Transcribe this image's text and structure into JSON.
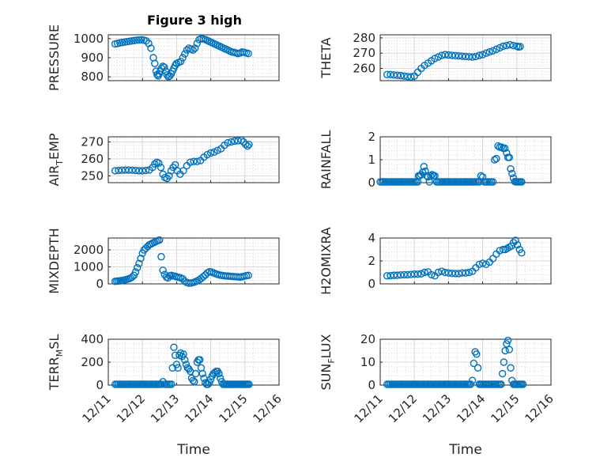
{
  "figure": {
    "title": "Figure 3 high"
  },
  "chart_data": [
    {
      "id": "pressure",
      "type": "scatter",
      "ylabel": "PRESSURE",
      "xlabel": "",
      "title": "Figure 3 high",
      "xlim": [
        0,
        5
      ],
      "ylim": [
        780,
        1020
      ],
      "xticks": [
        0,
        1,
        2,
        3,
        4,
        5
      ],
      "xticklabels": [],
      "yticks": [
        800,
        900,
        1000
      ],
      "yticklabels": [
        "800",
        "900",
        "1000"
      ],
      "grid": true,
      "minor_grid": true,
      "marker": "o",
      "color": "#0072bd",
      "x": [
        0.2,
        0.27,
        0.34,
        0.41,
        0.48,
        0.55,
        0.62,
        0.69,
        0.76,
        0.83,
        0.9,
        0.97,
        1.04,
        1.11,
        1.18,
        1.25,
        1.32,
        1.36,
        1.4,
        1.43,
        1.46,
        1.49,
        1.52,
        1.56,
        1.6,
        1.64,
        1.68,
        1.72,
        1.76,
        1.8,
        1.84,
        1.88,
        1.92,
        1.96,
        2.0,
        2.06,
        2.12,
        2.18,
        2.24,
        2.3,
        2.36,
        2.42,
        2.48,
        2.54,
        2.6,
        2.66,
        2.72,
        2.78,
        2.84,
        2.9,
        2.96,
        3.02,
        3.08,
        3.14,
        3.2,
        3.26,
        3.32,
        3.38,
        3.44,
        3.5,
        3.56,
        3.62,
        3.68,
        3.74,
        3.8,
        3.86,
        3.92,
        3.98,
        4.04,
        4.1
      ],
      "y": [
        972,
        975,
        978,
        980,
        982,
        984,
        986,
        988,
        990,
        992,
        993,
        994,
        992,
        988,
        975,
        950,
        900,
        870,
        830,
        812,
        805,
        815,
        830,
        845,
        855,
        850,
        830,
        810,
        800,
        805,
        815,
        830,
        845,
        860,
        870,
        875,
        880,
        900,
        920,
        940,
        950,
        945,
        940,
        950,
        975,
        995,
        1000,
        998,
        995,
        990,
        985,
        980,
        975,
        970,
        965,
        960,
        955,
        950,
        945,
        940,
        935,
        930,
        928,
        925,
        922,
        925,
        930,
        928,
        925,
        922
      ]
    },
    {
      "id": "theta",
      "type": "scatter",
      "ylabel": "THETA",
      "xlabel": "",
      "xlim": [
        0,
        5
      ],
      "ylim": [
        252,
        282
      ],
      "xticks": [
        0,
        1,
        2,
        3,
        4,
        5
      ],
      "xticklabels": [],
      "yticks": [
        260,
        270,
        280
      ],
      "yticklabels": [
        "260",
        "270",
        "280"
      ],
      "grid": true,
      "minor_grid": true,
      "marker": "o",
      "color": "#0072bd",
      "x": [
        0.2,
        0.3,
        0.4,
        0.5,
        0.6,
        0.7,
        0.8,
        0.9,
        1.0,
        1.1,
        1.2,
        1.3,
        1.4,
        1.5,
        1.6,
        1.7,
        1.8,
        1.9,
        2.0,
        2.1,
        2.2,
        2.3,
        2.4,
        2.5,
        2.6,
        2.7,
        2.8,
        2.9,
        3.0,
        3.1,
        3.2,
        3.3,
        3.4,
        3.5,
        3.6,
        3.7,
        3.8,
        3.9,
        4.0,
        4.05,
        4.1
      ],
      "y": [
        256,
        256,
        255.7,
        255.5,
        255.3,
        255,
        254.7,
        254.5,
        255,
        257.5,
        260,
        262,
        263.5,
        265,
        266.5,
        267.5,
        268.5,
        269,
        268.8,
        268.6,
        268.4,
        268.2,
        268,
        267.8,
        267.6,
        267.4,
        267.8,
        268.5,
        269,
        270,
        270.8,
        271.5,
        272.5,
        273.5,
        274.5,
        275,
        275.5,
        275,
        274.5,
        274,
        274.3
      ]
    },
    {
      "id": "air_temp",
      "type": "scatter",
      "ylabel": "AIR_TEMP",
      "xlabel": "",
      "xlim": [
        0,
        5
      ],
      "ylim": [
        246,
        273
      ],
      "xticks": [
        0,
        1,
        2,
        3,
        4,
        5
      ],
      "xticklabels": [],
      "yticks": [
        250,
        260,
        270
      ],
      "yticklabels": [
        "250",
        "260",
        "270"
      ],
      "grid": true,
      "minor_grid": true,
      "marker": "o",
      "color": "#0072bd",
      "x": [
        0.2,
        0.3,
        0.4,
        0.5,
        0.6,
        0.7,
        0.8,
        0.9,
        1.0,
        1.1,
        1.2,
        1.3,
        1.36,
        1.42,
        1.48,
        1.54,
        1.6,
        1.66,
        1.72,
        1.78,
        1.84,
        1.9,
        1.96,
        2.02,
        2.1,
        2.2,
        2.3,
        2.4,
        2.5,
        2.6,
        2.7,
        2.8,
        2.9,
        3.0,
        3.1,
        3.2,
        3.3,
        3.4,
        3.5,
        3.6,
        3.7,
        3.8,
        3.9,
        3.96,
        4.02,
        4.08,
        4.12
      ],
      "y": [
        253,
        253.2,
        253.3,
        253.4,
        253.4,
        253.3,
        253.2,
        253,
        253,
        253.2,
        253.5,
        255,
        257,
        258,
        257.5,
        255,
        251,
        249,
        248.5,
        250,
        253,
        255,
        256.5,
        253,
        251,
        253,
        256,
        258,
        258.5,
        258.5,
        259,
        261,
        262.5,
        263.5,
        264,
        265,
        266,
        268,
        269.5,
        270,
        270.5,
        270.7,
        271,
        270,
        268.5,
        267.5,
        268.5
      ]
    },
    {
      "id": "rainfall",
      "type": "scatter",
      "ylabel": "RAINFALL",
      "xlabel": "",
      "xlim": [
        0,
        5
      ],
      "ylim": [
        0,
        2
      ],
      "xticks": [
        0,
        1,
        2,
        3,
        4,
        5
      ],
      "xticklabels": [],
      "yticks": [
        0,
        1,
        2
      ],
      "yticklabels": [
        "0",
        "1",
        "2"
      ],
      "grid": true,
      "minor_grid": true,
      "marker": "o",
      "color": "#0072bd",
      "x": [
        0.0,
        0.05,
        0.1,
        0.15,
        0.2,
        0.25,
        0.3,
        0.35,
        0.4,
        0.45,
        0.5,
        0.55,
        0.6,
        0.65,
        0.7,
        0.75,
        0.8,
        0.85,
        0.9,
        0.95,
        1.0,
        1.05,
        1.1,
        1.12,
        1.16,
        1.2,
        1.24,
        1.28,
        1.32,
        1.36,
        1.4,
        1.44,
        1.48,
        1.52,
        1.56,
        1.6,
        1.65,
        1.7,
        1.75,
        1.8,
        1.85,
        1.9,
        1.95,
        2.0,
        2.05,
        2.1,
        2.15,
        2.2,
        2.25,
        2.3,
        2.35,
        2.4,
        2.45,
        2.5,
        2.55,
        2.6,
        2.65,
        2.7,
        2.75,
        2.8,
        2.85,
        2.9,
        2.95,
        3.0,
        3.05,
        3.1,
        3.15,
        3.2,
        3.25,
        3.3,
        3.35,
        3.4,
        3.45,
        3.5,
        3.55,
        3.6,
        3.65,
        3.7,
        3.74,
        3.78,
        3.82,
        3.86,
        3.9,
        3.94,
        3.98,
        4.02,
        4.06,
        4.1,
        4.14
      ],
      "y": [
        0,
        0,
        0,
        0,
        0,
        0,
        0,
        0,
        0,
        0,
        0,
        0,
        0,
        0,
        0,
        0,
        0,
        0,
        0,
        0,
        0,
        0,
        0,
        0.3,
        0.3,
        0.35,
        0.45,
        0.7,
        0.5,
        0.3,
        0.25,
        0,
        0.3,
        0.35,
        0.3,
        0.3,
        0,
        0,
        0,
        0,
        0,
        0,
        0,
        0,
        0,
        0,
        0,
        0,
        0,
        0,
        0,
        0,
        0,
        0,
        0,
        0,
        0,
        0,
        0,
        0,
        0,
        0,
        0.3,
        0.25,
        0,
        0,
        0,
        0,
        0,
        0,
        1.0,
        1.05,
        1.6,
        1.55,
        1.55,
        1.5,
        1.5,
        1.3,
        1.1,
        1.1,
        0.6,
        0.4,
        0.2,
        0.05,
        0,
        0,
        0,
        0,
        0
      ]
    },
    {
      "id": "mixdepth",
      "type": "scatter",
      "ylabel": "MIXDEPTH",
      "xlabel": "",
      "xlim": [
        0,
        5
      ],
      "ylim": [
        0,
        2700
      ],
      "xticks": [
        0,
        1,
        2,
        3,
        4,
        5
      ],
      "xticklabels": [],
      "yticks": [
        0,
        1000,
        2000
      ],
      "yticklabels": [
        "0",
        "1000",
        "2000"
      ],
      "grid": true,
      "minor_grid": true,
      "marker": "o",
      "color": "#0072bd",
      "x": [
        0.2,
        0.25,
        0.3,
        0.35,
        0.4,
        0.45,
        0.5,
        0.55,
        0.6,
        0.65,
        0.7,
        0.75,
        0.8,
        0.85,
        0.9,
        0.95,
        1.0,
        1.05,
        1.1,
        1.15,
        1.2,
        1.25,
        1.3,
        1.35,
        1.4,
        1.45,
        1.5,
        1.55,
        1.6,
        1.65,
        1.7,
        1.75,
        1.8,
        1.85,
        1.9,
        1.95,
        2.0,
        2.06,
        2.12,
        2.18,
        2.24,
        2.3,
        2.36,
        2.42,
        2.48,
        2.54,
        2.6,
        2.66,
        2.72,
        2.78,
        2.84,
        2.9,
        2.96,
        3.02,
        3.08,
        3.14,
        3.2,
        3.26,
        3.32,
        3.38,
        3.44,
        3.5,
        3.56,
        3.62,
        3.68,
        3.74,
        3.8,
        3.86,
        3.92,
        3.98,
        4.04,
        4.1
      ],
      "y": [
        150,
        160,
        170,
        180,
        200,
        220,
        240,
        270,
        300,
        340,
        400,
        500,
        700,
        950,
        1200,
        1500,
        1800,
        2000,
        2100,
        2200,
        2300,
        2350,
        2400,
        2450,
        2500,
        2550,
        2580,
        1600,
        800,
        550,
        400,
        350,
        480,
        500,
        470,
        450,
        420,
        380,
        350,
        300,
        150,
        80,
        40,
        50,
        80,
        120,
        170,
        240,
        320,
        420,
        520,
        650,
        720,
        700,
        650,
        600,
        560,
        520,
        500,
        480,
        470,
        460,
        450,
        440,
        430,
        420,
        410,
        400,
        420,
        450,
        480,
        500
      ]
    },
    {
      "id": "h2omixra",
      "type": "scatter",
      "ylabel": "H2OMIXRA",
      "xlabel": "",
      "xlim": [
        0,
        5
      ],
      "ylim": [
        0,
        4
      ],
      "xticks": [
        0,
        1,
        2,
        3,
        4,
        5
      ],
      "xticklabels": [],
      "yticks": [
        0,
        2,
        4
      ],
      "yticklabels": [
        "0",
        "2",
        "4"
      ],
      "grid": true,
      "minor_grid": true,
      "marker": "o",
      "color": "#0072bd",
      "x": [
        0.2,
        0.3,
        0.4,
        0.5,
        0.6,
        0.7,
        0.8,
        0.9,
        1.0,
        1.1,
        1.2,
        1.3,
        1.4,
        1.5,
        1.6,
        1.7,
        1.8,
        1.9,
        2.0,
        2.1,
        2.2,
        2.3,
        2.4,
        2.5,
        2.6,
        2.7,
        2.8,
        2.9,
        3.0,
        3.1,
        3.2,
        3.3,
        3.4,
        3.5,
        3.6,
        3.66,
        3.72,
        3.78,
        3.84,
        3.9,
        3.96,
        4.02,
        4.08,
        4.14
      ],
      "y": [
        0.7,
        0.72,
        0.75,
        0.75,
        0.78,
        0.8,
        0.8,
        0.82,
        0.85,
        0.85,
        0.88,
        1.0,
        1.05,
        0.8,
        0.7,
        1.0,
        1.1,
        1.0,
        0.95,
        0.92,
        0.9,
        0.9,
        0.95,
        0.95,
        1.0,
        1.1,
        1.4,
        1.7,
        1.8,
        1.7,
        1.9,
        2.2,
        2.6,
        2.9,
        3.0,
        3.0,
        3.1,
        3.2,
        3.3,
        3.6,
        3.8,
        3.4,
        3.0,
        2.7
      ]
    },
    {
      "id": "terr_msl",
      "type": "scatter",
      "ylabel": "TERR_MSL",
      "xlabel": "Time",
      "xlim": [
        0,
        5
      ],
      "ylim": [
        0,
        400
      ],
      "xticks": [
        0,
        1,
        2,
        3,
        4,
        5
      ],
      "xticklabels": [
        "12/11",
        "12/12",
        "12/13",
        "12/14",
        "12/15",
        "12/16"
      ],
      "yticks": [
        0,
        200,
        400
      ],
      "yticklabels": [
        "0",
        "200",
        "400"
      ],
      "grid": true,
      "minor_grid": true,
      "marker": "o",
      "color": "#0072bd",
      "x": [
        0.2,
        0.25,
        0.3,
        0.35,
        0.4,
        0.45,
        0.5,
        0.55,
        0.6,
        0.65,
        0.7,
        0.75,
        0.8,
        0.85,
        0.9,
        0.95,
        1.0,
        1.05,
        1.1,
        1.15,
        1.2,
        1.25,
        1.3,
        1.35,
        1.4,
        1.45,
        1.5,
        1.55,
        1.6,
        1.65,
        1.7,
        1.75,
        1.8,
        1.85,
        1.88,
        1.92,
        1.96,
        2.0,
        2.04,
        2.08,
        2.12,
        2.16,
        2.2,
        2.24,
        2.28,
        2.32,
        2.36,
        2.4,
        2.44,
        2.48,
        2.52,
        2.56,
        2.6,
        2.64,
        2.68,
        2.72,
        2.76,
        2.8,
        2.84,
        2.88,
        2.92,
        2.96,
        3.0,
        3.04,
        3.08,
        3.12,
        3.16,
        3.2,
        3.24,
        3.28,
        3.32,
        3.36,
        3.4,
        3.44,
        3.48,
        3.52,
        3.56,
        3.6,
        3.64,
        3.68,
        3.72,
        3.76,
        3.8,
        3.84,
        3.88,
        3.92,
        3.96,
        4.0,
        4.04,
        4.08,
        4.12
      ],
      "y": [
        0,
        0,
        0,
        0,
        0,
        0,
        0,
        0,
        0,
        0,
        0,
        0,
        0,
        0,
        0,
        0,
        0,
        0,
        0,
        0,
        0,
        0,
        0,
        0,
        0,
        0,
        0,
        0,
        30,
        0,
        0,
        0,
        0,
        0,
        150,
        330,
        260,
        180,
        150,
        260,
        280,
        250,
        270,
        220,
        180,
        150,
        140,
        120,
        60,
        40,
        30,
        100,
        200,
        220,
        220,
        150,
        100,
        60,
        20,
        5,
        0,
        20,
        50,
        80,
        100,
        110,
        120,
        120,
        100,
        60,
        30,
        0,
        0,
        0,
        0,
        0,
        0,
        0,
        0,
        0,
        0,
        0,
        0,
        0,
        0,
        0,
        0,
        0,
        0,
        0,
        0
      ]
    },
    {
      "id": "sun_flux",
      "type": "scatter",
      "ylabel": "SUN_FLUX",
      "xlabel": "Time",
      "xlim": [
        0,
        5
      ],
      "ylim": [
        0,
        20
      ],
      "xticks": [
        0,
        1,
        2,
        3,
        4,
        5
      ],
      "xticklabels": [
        "12/11",
        "12/12",
        "12/13",
        "12/14",
        "12/15",
        "12/16"
      ],
      "yticks": [
        0,
        10,
        20
      ],
      "yticklabels": [
        "0",
        "10",
        "20"
      ],
      "grid": true,
      "minor_grid": true,
      "marker": "o",
      "color": "#0072bd",
      "x": [
        0.2,
        0.25,
        0.3,
        0.35,
        0.4,
        0.45,
        0.5,
        0.55,
        0.6,
        0.65,
        0.7,
        0.75,
        0.8,
        0.85,
        0.9,
        0.95,
        1.0,
        1.05,
        1.1,
        1.15,
        1.2,
        1.25,
        1.3,
        1.35,
        1.4,
        1.45,
        1.5,
        1.55,
        1.6,
        1.65,
        1.7,
        1.75,
        1.8,
        1.85,
        1.9,
        1.95,
        2.0,
        2.05,
        2.1,
        2.15,
        2.2,
        2.25,
        2.3,
        2.35,
        2.4,
        2.45,
        2.5,
        2.55,
        2.6,
        2.65,
        2.7,
        2.74,
        2.78,
        2.82,
        2.86,
        2.9,
        2.94,
        2.98,
        3.02,
        3.06,
        3.1,
        3.15,
        3.2,
        3.25,
        3.3,
        3.35,
        3.4,
        3.45,
        3.5,
        3.54,
        3.58,
        3.62,
        3.66,
        3.7,
        3.74,
        3.78,
        3.82,
        3.86,
        3.9,
        3.94,
        3.98,
        4.02,
        4.06,
        4.1,
        4.14,
        4.18
      ],
      "y": [
        0,
        0,
        0,
        0,
        0,
        0,
        0,
        0,
        0,
        0,
        0,
        0,
        0,
        0,
        0,
        0,
        0,
        0,
        0,
        0,
        0,
        0,
        0,
        0,
        0,
        0,
        0,
        0,
        0,
        0,
        0,
        0,
        0,
        0,
        0,
        0,
        0,
        0,
        0,
        0,
        0,
        0,
        0,
        0,
        0,
        0,
        0,
        0,
        0,
        0,
        2,
        9.5,
        14.5,
        13.5,
        7.5,
        0,
        0,
        0,
        0,
        0,
        0,
        0,
        0,
        0,
        0,
        0,
        0,
        0,
        0,
        0,
        5,
        10,
        15,
        18,
        19.5,
        15.5,
        7.5,
        2,
        0,
        0,
        0,
        0,
        0,
        0,
        0,
        0
      ]
    }
  ]
}
